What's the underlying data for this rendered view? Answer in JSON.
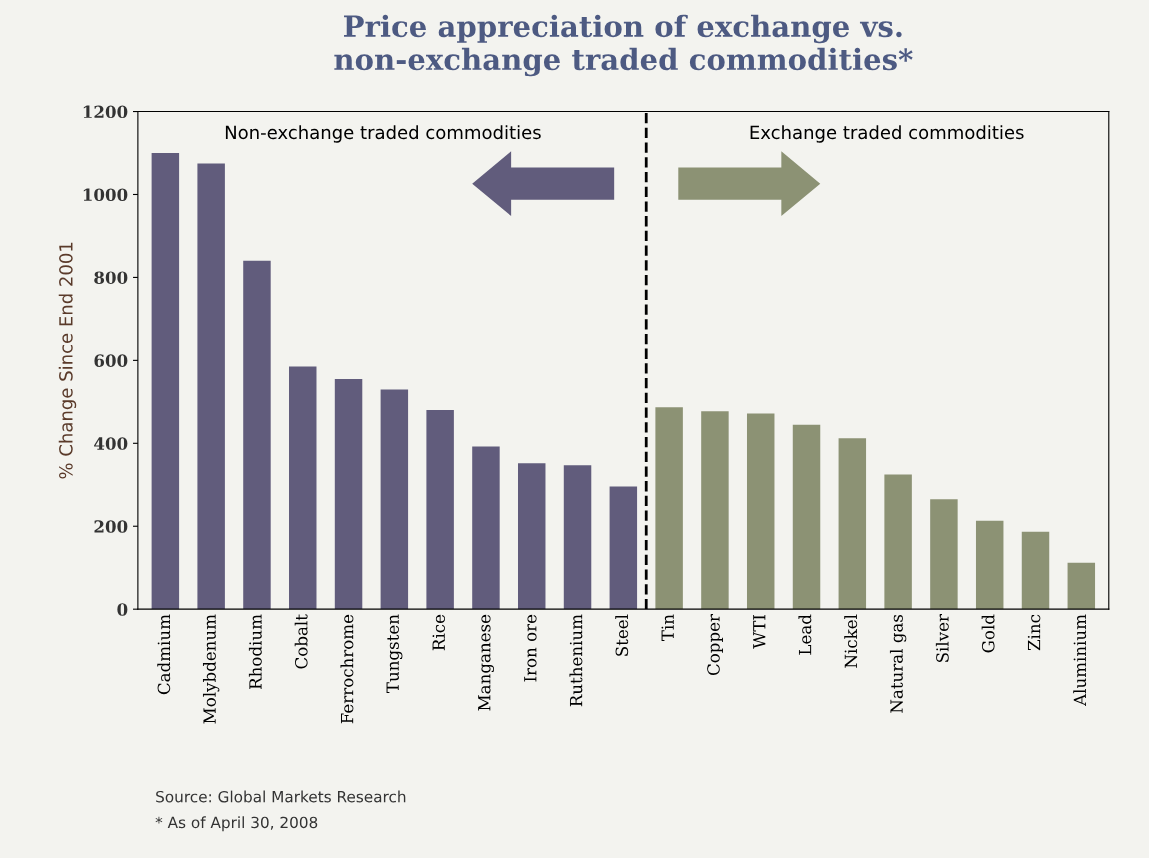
{
  "chart_data": {
    "type": "bar",
    "title": "Price appreciation of exchange vs.\nnon-exchange traded commodities*",
    "ylabel": "% Change Since End 2001",
    "categories": [
      "Cadmium",
      "Molybdenum",
      "Rhodium",
      "Cobalt",
      "Ferrochrome",
      "Tungsten",
      "Rice",
      "Manganese",
      "Iron ore",
      "Ruthenium",
      "Steel",
      "Tin",
      "Copper",
      "WTI",
      "Lead",
      "Nickel",
      "Natural gas",
      "Silver",
      "Gold",
      "Zinc",
      "Aluminium"
    ],
    "values": [
      1100,
      1075,
      840,
      585,
      555,
      530,
      480,
      392,
      352,
      347,
      296,
      487,
      477,
      472,
      445,
      412,
      325,
      265,
      213,
      187,
      112
    ],
    "colors": [
      "#615c7c",
      "#615c7c",
      "#615c7c",
      "#615c7c",
      "#615c7c",
      "#615c7c",
      "#615c7c",
      "#615c7c",
      "#615c7c",
      "#615c7c",
      "#615c7c",
      "#8c9274",
      "#8c9274",
      "#8c9274",
      "#8c9274",
      "#8c9274",
      "#8c9274",
      "#8c9274",
      "#8c9274",
      "#8c9274",
      "#8c9274"
    ],
    "ylim": [
      0,
      1200
    ],
    "yticks": [
      0,
      200,
      400,
      600,
      800,
      1000,
      1200
    ],
    "grid": false,
    "legend": false,
    "annotations": [
      "Non-exchange traded commodities",
      "Exchange traded commodities",
      "Source: Global Markets Research",
      "* As of April 30, 2008"
    ]
  }
}
